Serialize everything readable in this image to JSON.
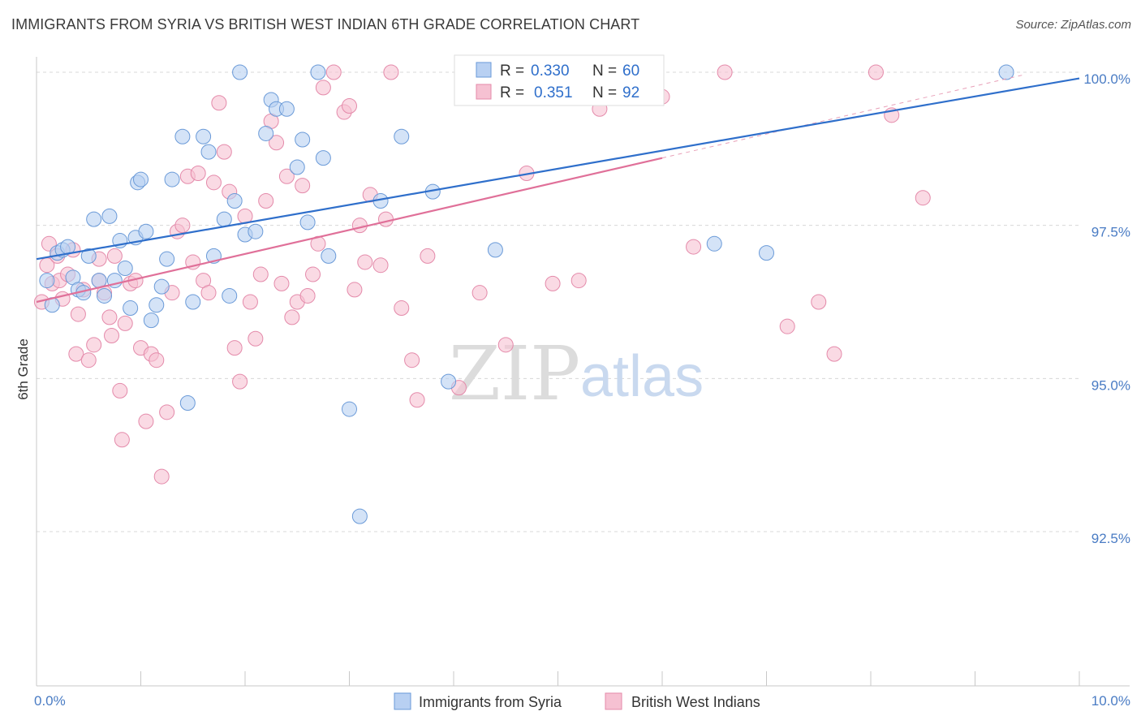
{
  "header": {
    "title": "IMMIGRANTS FROM SYRIA VS BRITISH WEST INDIAN 6TH GRADE CORRELATION CHART",
    "source": "Source: ZipAtlas.com"
  },
  "watermark": {
    "zip": "ZIP",
    "atlas": "atlas"
  },
  "colors": {
    "blue": "#4a86d8",
    "blue_fill": "#b8d0f2",
    "pink": "#e07099",
    "pink_fill": "#f6c1d2",
    "tick_text": "#4a7cc4",
    "grid": "#d8d8d8"
  },
  "legend": {
    "rows": [
      {
        "r_label": "R =",
        "r_value": "0.330",
        "n_label": "N =",
        "n_value": "60",
        "series": "blue"
      },
      {
        "r_label": "R =",
        "r_value": "0.351",
        "n_label": "N =",
        "n_value": "92",
        "series": "pink"
      }
    ]
  },
  "bottom_legend": [
    {
      "label": "Immigrants from Syria",
      "series": "blue"
    },
    {
      "label": "British West Indians",
      "series": "pink"
    }
  ],
  "chart_data": {
    "type": "scatter",
    "title": "IMMIGRANTS FROM SYRIA VS BRITISH WEST INDIAN 6TH GRADE CORRELATION CHART",
    "xlabel": "",
    "ylabel": "6th Grade",
    "xlim": [
      0,
      10
    ],
    "ylim": [
      90.0,
      100.35
    ],
    "x_tick_labels": [
      {
        "value": 0,
        "label": "0.0%"
      },
      {
        "value": 10,
        "label": "10.0%"
      }
    ],
    "y_tick_labels": [
      {
        "value": 100.0,
        "label": "100.0%"
      },
      {
        "value": 97.5,
        "label": "97.5%"
      },
      {
        "value": 95.0,
        "label": "95.0%"
      },
      {
        "value": 92.5,
        "label": "92.5%"
      }
    ],
    "grid": true,
    "legend_position": "top-center",
    "series": [
      {
        "name": "Immigrants from Syria",
        "color": "#4a86d8",
        "r": 0.33,
        "n": 60,
        "trend": {
          "x": [
            0,
            10
          ],
          "y": [
            96.95,
            99.9
          ]
        },
        "points": [
          [
            0.1,
            96.6
          ],
          [
            0.15,
            96.2
          ],
          [
            0.2,
            97.05
          ],
          [
            0.25,
            97.1
          ],
          [
            0.3,
            97.15
          ],
          [
            0.35,
            96.65
          ],
          [
            0.4,
            96.45
          ],
          [
            0.45,
            96.4
          ],
          [
            0.5,
            97.0
          ],
          [
            0.55,
            97.6
          ],
          [
            0.6,
            96.6
          ],
          [
            0.65,
            96.35
          ],
          [
            0.7,
            97.65
          ],
          [
            0.75,
            96.6
          ],
          [
            0.8,
            97.25
          ],
          [
            0.85,
            96.8
          ],
          [
            0.9,
            96.15
          ],
          [
            0.95,
            97.3
          ],
          [
            0.97,
            98.2
          ],
          [
            1.0,
            98.25
          ],
          [
            1.05,
            97.4
          ],
          [
            1.1,
            95.95
          ],
          [
            1.15,
            96.2
          ],
          [
            1.2,
            96.5
          ],
          [
            1.25,
            96.95
          ],
          [
            1.3,
            98.25
          ],
          [
            1.4,
            98.95
          ],
          [
            1.45,
            94.6
          ],
          [
            1.5,
            96.25
          ],
          [
            1.6,
            98.95
          ],
          [
            1.65,
            98.7
          ],
          [
            1.7,
            97.0
          ],
          [
            1.8,
            97.6
          ],
          [
            1.85,
            96.35
          ],
          [
            1.9,
            97.9
          ],
          [
            1.95,
            100.0
          ],
          [
            2.0,
            97.35
          ],
          [
            2.1,
            97.4
          ],
          [
            2.2,
            99.0
          ],
          [
            2.25,
            99.55
          ],
          [
            2.3,
            99.4
          ],
          [
            2.4,
            99.4
          ],
          [
            2.5,
            98.45
          ],
          [
            2.55,
            98.9
          ],
          [
            2.6,
            97.55
          ],
          [
            2.7,
            100.0
          ],
          [
            2.75,
            98.6
          ],
          [
            2.8,
            97.0
          ],
          [
            3.0,
            94.5
          ],
          [
            3.1,
            92.75
          ],
          [
            3.3,
            97.9
          ],
          [
            3.5,
            98.95
          ],
          [
            3.8,
            98.05
          ],
          [
            3.95,
            94.95
          ],
          [
            4.4,
            97.1
          ],
          [
            4.9,
            100.0
          ],
          [
            5.5,
            100.0
          ],
          [
            6.5,
            97.2
          ],
          [
            7.0,
            97.05
          ],
          [
            9.3,
            100.0
          ]
        ]
      },
      {
        "name": "British West Indians",
        "color": "#e07099",
        "r": 0.351,
        "n": 92,
        "trend": {
          "x": [
            0,
            6.0
          ],
          "y": [
            96.25,
            98.6
          ]
        },
        "points": [
          [
            0.05,
            96.25
          ],
          [
            0.1,
            96.85
          ],
          [
            0.12,
            97.2
          ],
          [
            0.15,
            96.55
          ],
          [
            0.2,
            97.0
          ],
          [
            0.22,
            96.6
          ],
          [
            0.25,
            96.3
          ],
          [
            0.3,
            96.7
          ],
          [
            0.35,
            97.1
          ],
          [
            0.38,
            95.4
          ],
          [
            0.4,
            96.05
          ],
          [
            0.45,
            96.45
          ],
          [
            0.5,
            95.3
          ],
          [
            0.55,
            95.55
          ],
          [
            0.6,
            96.6
          ],
          [
            0.65,
            96.4
          ],
          [
            0.7,
            96.0
          ],
          [
            0.72,
            95.7
          ],
          [
            0.75,
            97.0
          ],
          [
            0.8,
            94.8
          ],
          [
            0.82,
            94.0
          ],
          [
            0.85,
            95.9
          ],
          [
            0.9,
            96.55
          ],
          [
            0.95,
            96.6
          ],
          [
            1.0,
            95.5
          ],
          [
            1.05,
            94.3
          ],
          [
            1.1,
            95.4
          ],
          [
            1.15,
            95.3
          ],
          [
            1.2,
            93.4
          ],
          [
            1.25,
            94.45
          ],
          [
            1.3,
            96.4
          ],
          [
            1.35,
            97.4
          ],
          [
            1.4,
            97.5
          ],
          [
            1.45,
            98.3
          ],
          [
            1.5,
            96.9
          ],
          [
            1.55,
            98.35
          ],
          [
            1.6,
            96.6
          ],
          [
            1.65,
            96.4
          ],
          [
            1.7,
            98.2
          ],
          [
            1.75,
            99.5
          ],
          [
            1.8,
            98.7
          ],
          [
            1.85,
            98.05
          ],
          [
            1.9,
            95.5
          ],
          [
            1.95,
            94.95
          ],
          [
            2.0,
            97.65
          ],
          [
            2.05,
            96.25
          ],
          [
            2.1,
            95.65
          ],
          [
            2.15,
            96.7
          ],
          [
            2.2,
            97.9
          ],
          [
            2.25,
            99.2
          ],
          [
            2.3,
            98.85
          ],
          [
            2.35,
            96.55
          ],
          [
            2.4,
            98.3
          ],
          [
            2.45,
            96.0
          ],
          [
            2.5,
            96.25
          ],
          [
            2.55,
            98.15
          ],
          [
            2.6,
            96.35
          ],
          [
            2.65,
            96.7
          ],
          [
            2.7,
            97.2
          ],
          [
            2.75,
            99.75
          ],
          [
            2.85,
            100.0
          ],
          [
            2.95,
            99.35
          ],
          [
            3.0,
            99.45
          ],
          [
            3.05,
            96.45
          ],
          [
            3.1,
            97.5
          ],
          [
            3.15,
            96.9
          ],
          [
            3.2,
            98.0
          ],
          [
            3.3,
            96.85
          ],
          [
            3.35,
            97.6
          ],
          [
            3.4,
            100.0
          ],
          [
            3.5,
            96.15
          ],
          [
            3.6,
            95.3
          ],
          [
            3.65,
            94.65
          ],
          [
            3.75,
            97.0
          ],
          [
            4.05,
            94.85
          ],
          [
            4.25,
            96.4
          ],
          [
            4.5,
            95.55
          ],
          [
            4.7,
            98.35
          ],
          [
            4.95,
            96.55
          ],
          [
            5.2,
            96.6
          ],
          [
            5.4,
            99.4
          ],
          [
            5.7,
            99.9
          ],
          [
            6.0,
            99.6
          ],
          [
            6.3,
            97.15
          ],
          [
            6.6,
            100.0
          ],
          [
            7.2,
            95.85
          ],
          [
            7.5,
            96.25
          ],
          [
            7.65,
            95.4
          ],
          [
            8.05,
            100.0
          ],
          [
            8.2,
            99.3
          ],
          [
            8.5,
            97.95
          ],
          [
            0.6,
            96.95
          ]
        ]
      }
    ]
  }
}
